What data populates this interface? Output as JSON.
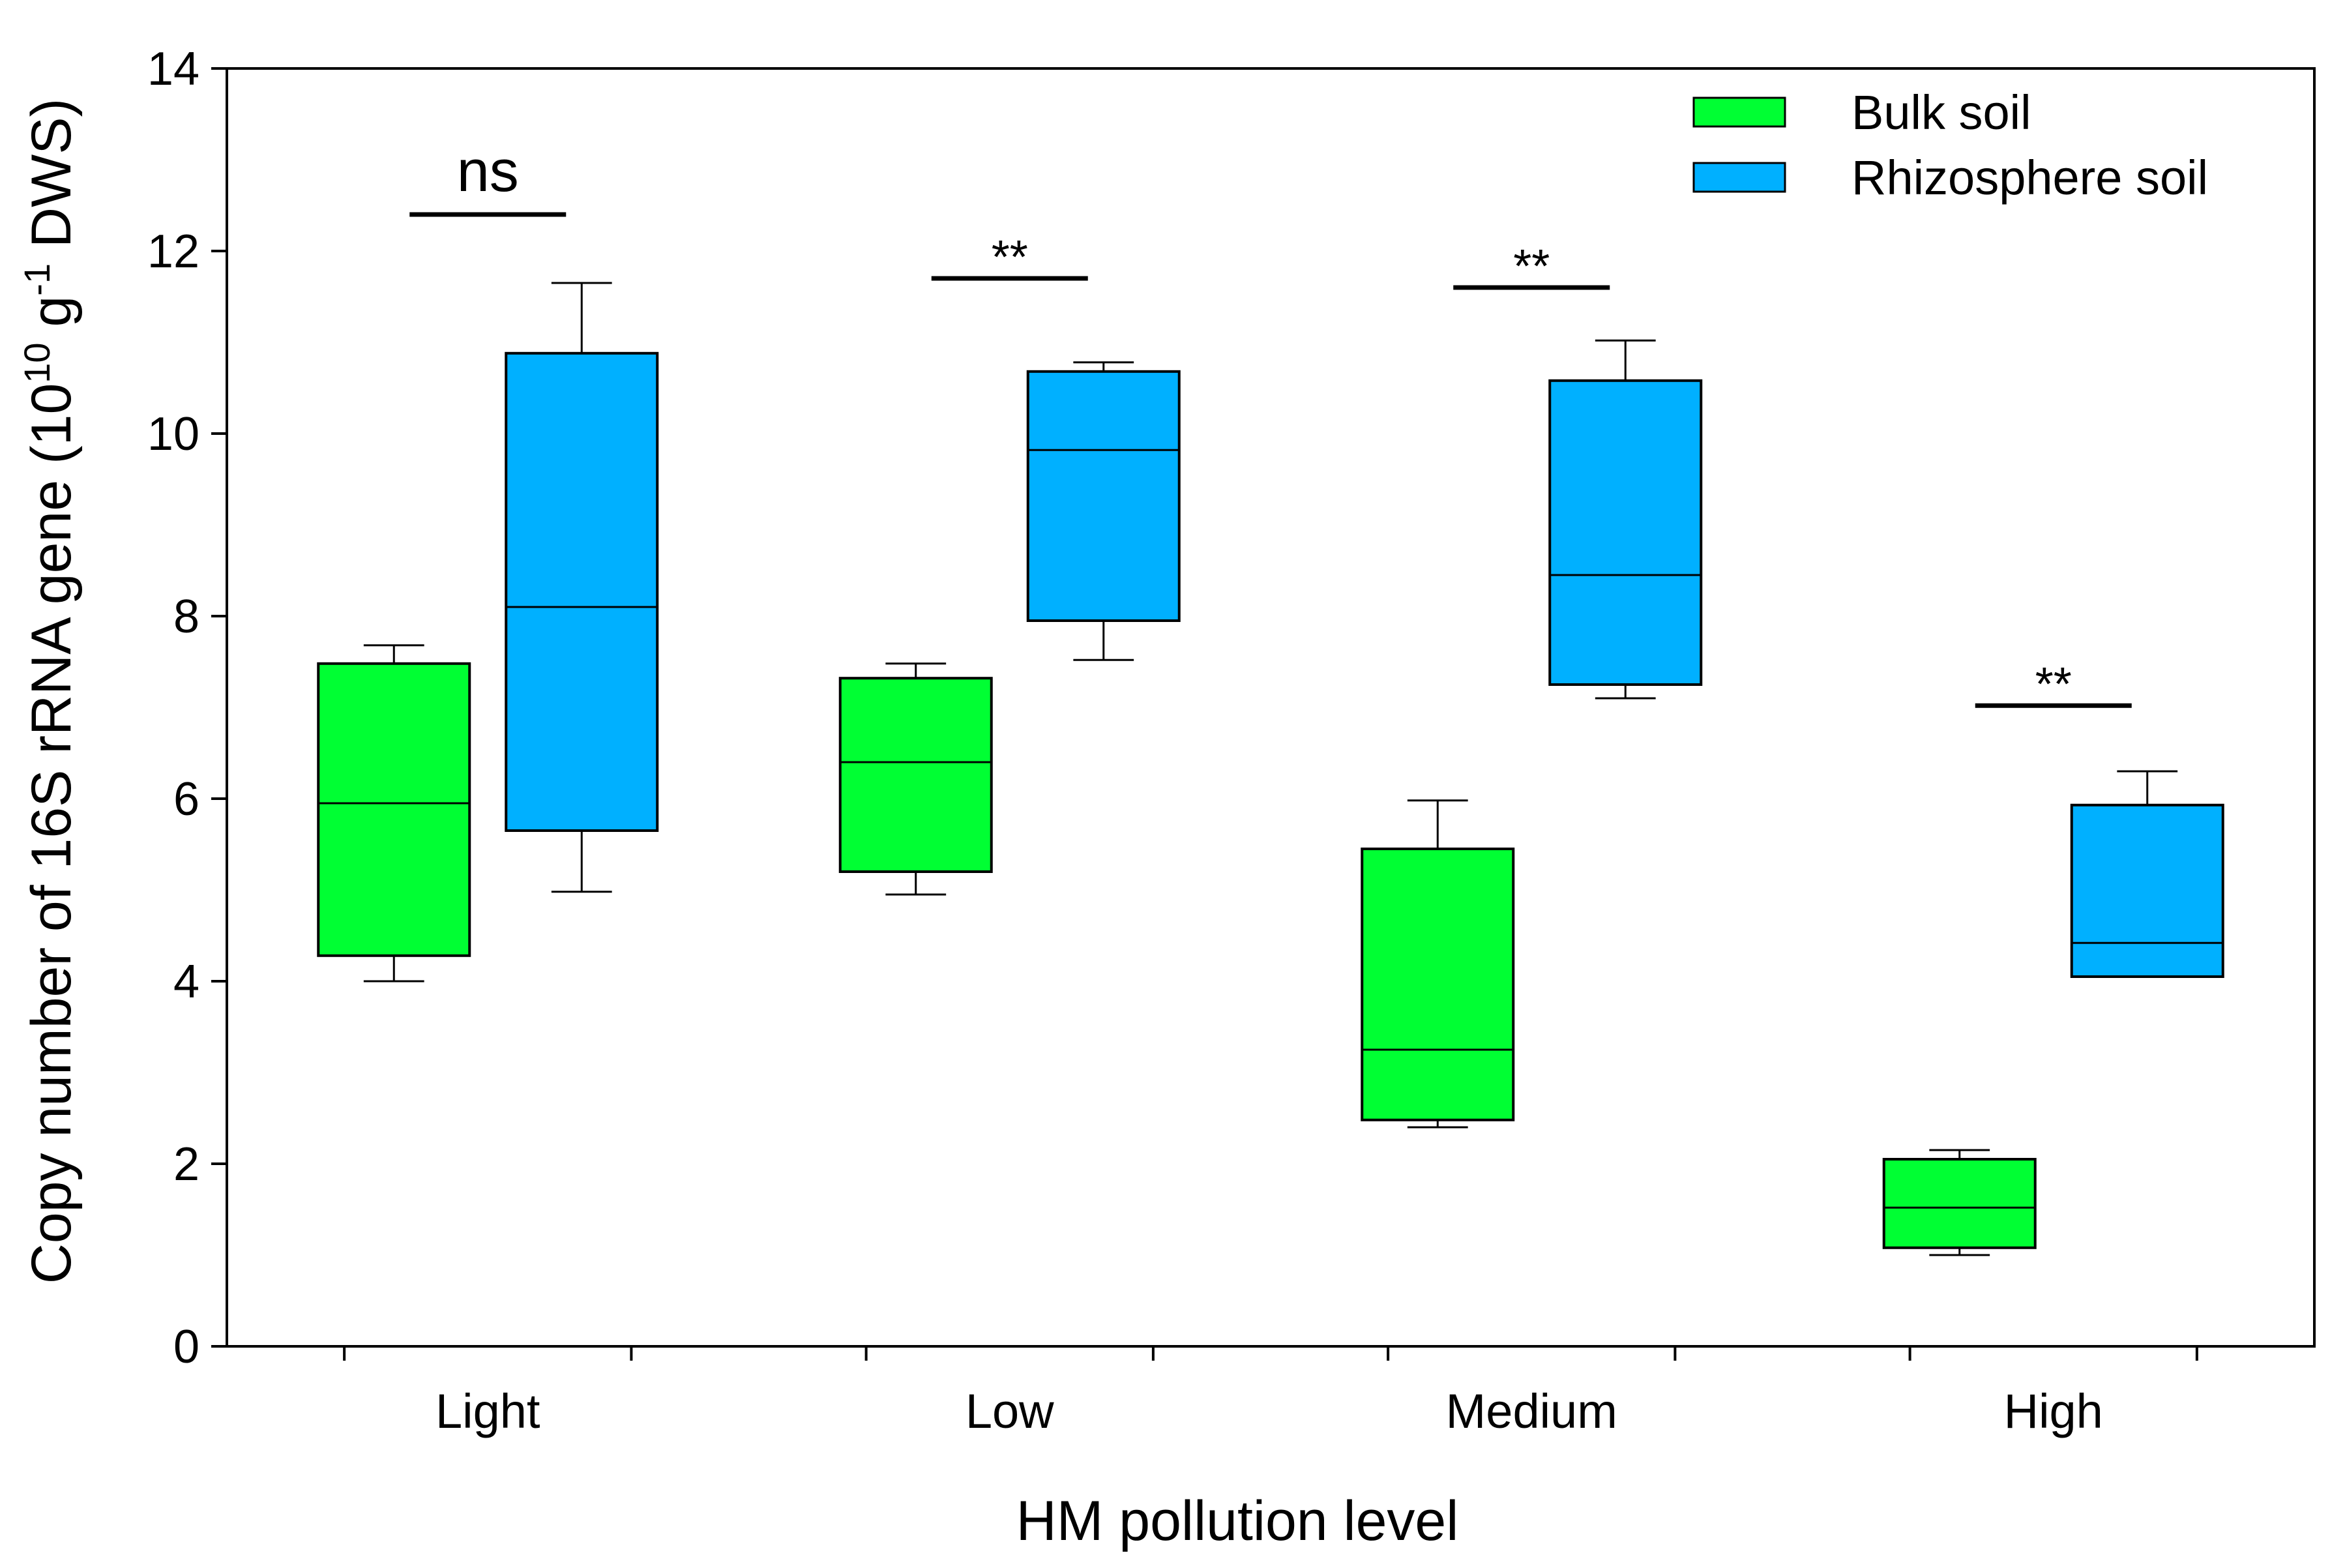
{
  "chart_data": {
    "type": "box",
    "title": "",
    "xlabel": "HM pollution level",
    "ylabel_parts": [
      "Copy number of 16S rRNA gene (10",
      "10",
      " g",
      "-1",
      " DWS)"
    ],
    "ylim": [
      0,
      14
    ],
    "yticks": [
      0,
      2,
      4,
      6,
      8,
      10,
      12,
      14
    ],
    "ytick_labels": [
      "0",
      "2",
      "4",
      "6",
      "8",
      "10",
      "12",
      "14"
    ],
    "categories": [
      "Light",
      "Low",
      "Medium",
      "High"
    ],
    "series": [
      {
        "name": "Bulk soil",
        "color": "#00FF33",
        "boxes": [
          {
            "whisker_low": 4.0,
            "q1": 4.28,
            "median": 5.95,
            "q3": 7.48,
            "whisker_high": 7.68
          },
          {
            "whisker_low": 4.95,
            "q1": 5.2,
            "median": 6.4,
            "q3": 7.32,
            "whisker_high": 7.48
          },
          {
            "whisker_low": 2.4,
            "q1": 2.48,
            "median": 3.25,
            "q3": 5.45,
            "whisker_high": 5.98
          },
          {
            "whisker_low": 1.0,
            "q1": 1.08,
            "median": 1.52,
            "q3": 2.05,
            "whisker_high": 2.15
          }
        ]
      },
      {
        "name": "Rhizosphere soil",
        "color": "#00B0FF",
        "boxes": [
          {
            "whisker_low": 4.98,
            "q1": 5.65,
            "median": 8.1,
            "q3": 10.88,
            "whisker_high": 11.65
          },
          {
            "whisker_low": 7.52,
            "q1": 7.95,
            "median": 9.82,
            "q3": 10.68,
            "whisker_high": 10.78
          },
          {
            "whisker_low": 7.1,
            "q1": 7.25,
            "median": 8.45,
            "q3": 10.58,
            "whisker_high": 11.02
          },
          {
            "whisker_low": 4.05,
            "q1": 4.05,
            "median": 4.42,
            "q3": 5.93,
            "whisker_high": 6.3
          }
        ]
      }
    ],
    "significance": [
      {
        "category": "Light",
        "label": "ns",
        "y": 12.4
      },
      {
        "category": "Low",
        "label": "**",
        "y": 11.7
      },
      {
        "category": "Medium",
        "label": "**",
        "y": 11.6
      },
      {
        "category": "High",
        "label": "**",
        "y": 7.02
      }
    ],
    "legend": {
      "position": "top-right",
      "entries": [
        "Bulk soil",
        "Rhizosphere soil"
      ]
    },
    "grid": false
  }
}
